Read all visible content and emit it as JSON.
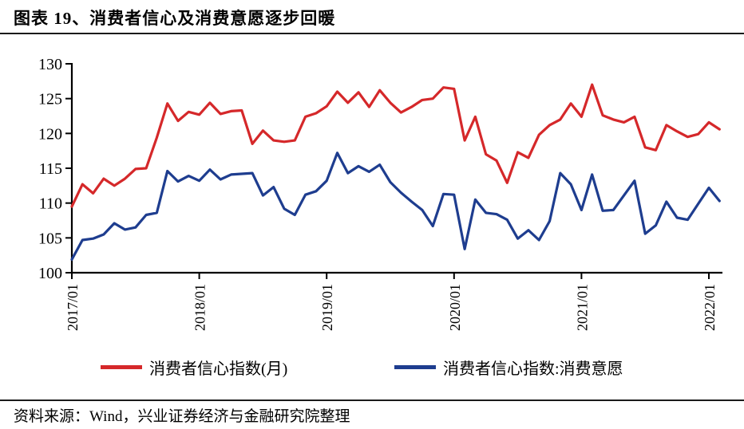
{
  "header": {
    "title": "图表 19、消费者信心及消费意愿逐步回暖"
  },
  "footer": {
    "source": "资料来源：Wind，兴业证券经济与金融研究院整理"
  },
  "legend": [
    {
      "label": "消费者信心指数(月)",
      "color": "#d5282a"
    },
    {
      "label": "消费者信心指数:消费意愿",
      "color": "#1e3d8f"
    }
  ],
  "chart_data": {
    "type": "line",
    "title": "消费者信心及消费意愿逐步回暖",
    "grid": false,
    "legend_position": "bottom",
    "axis_color": "#000000",
    "ylim": [
      100,
      130
    ],
    "y_ticks": [
      100,
      105,
      110,
      115,
      120,
      125,
      130
    ],
    "x_tick_labels": [
      "2017/01",
      "2018/01",
      "2019/01",
      "2020/01",
      "2021/01",
      "2022/01"
    ],
    "x_tick_every": 12,
    "months": [
      "2017/01",
      "2017/02",
      "2017/03",
      "2017/04",
      "2017/05",
      "2017/06",
      "2017/07",
      "2017/08",
      "2017/09",
      "2017/10",
      "2017/11",
      "2017/12",
      "2018/01",
      "2018/02",
      "2018/03",
      "2018/04",
      "2018/05",
      "2018/06",
      "2018/07",
      "2018/08",
      "2018/09",
      "2018/10",
      "2018/11",
      "2018/12",
      "2019/01",
      "2019/02",
      "2019/03",
      "2019/04",
      "2019/05",
      "2019/06",
      "2019/07",
      "2019/08",
      "2019/09",
      "2019/10",
      "2019/11",
      "2019/12",
      "2020/01",
      "2020/02",
      "2020/03",
      "2020/04",
      "2020/05",
      "2020/06",
      "2020/07",
      "2020/08",
      "2020/09",
      "2020/10",
      "2020/11",
      "2020/12",
      "2021/01",
      "2021/02",
      "2021/03",
      "2021/04",
      "2021/05",
      "2021/06",
      "2021/07",
      "2021/08",
      "2021/09",
      "2021/10",
      "2021/11",
      "2021/12",
      "2022/01",
      "2022/02"
    ],
    "series": [
      {
        "name": "消费者信心指数(月)",
        "color": "#d5282a",
        "values": [
          109.5,
          112.7,
          111.4,
          113.5,
          112.5,
          113.5,
          114.9,
          115.0,
          119.4,
          124.3,
          121.8,
          123.1,
          122.7,
          124.4,
          122.8,
          123.2,
          123.3,
          118.5,
          120.4,
          119.0,
          118.8,
          119.0,
          122.4,
          122.9,
          123.9,
          126.0,
          124.4,
          125.9,
          123.8,
          126.2,
          124.4,
          123.0,
          123.8,
          124.8,
          125.0,
          126.6,
          126.4,
          119.0,
          122.4,
          117.0,
          116.1,
          112.9,
          117.3,
          116.5,
          119.8,
          121.2,
          122.0,
          124.3,
          122.4,
          127.0,
          122.6,
          122.0,
          121.6,
          122.4,
          118.0,
          117.6,
          121.2,
          120.3,
          119.5,
          119.9,
          121.6,
          120.6
        ]
      },
      {
        "name": "消费者信心指数:消费意愿",
        "color": "#1e3d8f",
        "values": [
          101.9,
          104.7,
          104.9,
          105.5,
          107.1,
          106.2,
          106.5,
          108.3,
          108.6,
          114.6,
          113.1,
          113.9,
          113.2,
          114.8,
          113.4,
          114.1,
          114.2,
          114.3,
          111.1,
          112.3,
          109.2,
          108.3,
          111.2,
          111.7,
          113.2,
          117.2,
          114.3,
          115.3,
          114.5,
          115.5,
          113.0,
          111.5,
          110.2,
          109.0,
          106.7,
          111.3,
          111.2,
          103.4,
          110.5,
          108.6,
          108.4,
          107.6,
          104.9,
          106.1,
          104.7,
          107.4,
          114.3,
          112.7,
          109.0,
          114.1,
          108.9,
          109.0,
          111.1,
          113.2,
          105.6,
          106.8,
          110.2,
          107.9,
          107.6,
          109.9,
          112.2,
          110.3
        ]
      }
    ]
  }
}
